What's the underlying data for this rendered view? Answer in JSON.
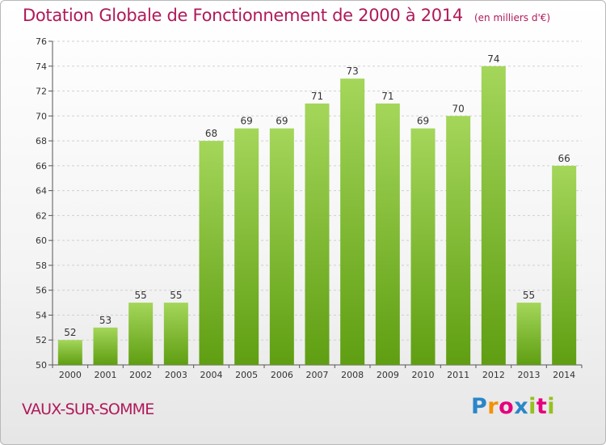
{
  "chart_data": {
    "type": "bar",
    "title": "Dotation Globale de Fonctionnement de 2000 à 2014",
    "subtitle": "(en milliers d'€)",
    "categories": [
      "2000",
      "2001",
      "2002",
      "2003",
      "2004",
      "2005",
      "2006",
      "2007",
      "2008",
      "2009",
      "2010",
      "2011",
      "2012",
      "2013",
      "2014"
    ],
    "values": [
      52,
      53,
      55,
      55,
      68,
      69,
      69,
      71,
      73,
      71,
      69,
      70,
      74,
      55,
      66
    ],
    "ylim": [
      50,
      76
    ],
    "yticks": [
      "50",
      "52",
      "54",
      "56",
      "58",
      "60",
      "62",
      "64",
      "66",
      "68",
      "70",
      "72",
      "74",
      "76"
    ],
    "xlabel": "",
    "ylabel": "",
    "grid": true,
    "legend": "none",
    "bar_color_top": "#a4d65a",
    "bar_color_bottom": "#5f9e12"
  },
  "commune": "VAUX-SUR-SOMME",
  "brand": {
    "letters": [
      "P",
      "r",
      "o",
      "x",
      "i",
      "t",
      "i"
    ],
    "colors": [
      "#2a86c8",
      "#f39200",
      "#e5007d",
      "#2a86c8",
      "#95c11f",
      "#e5007d",
      "#95c11f"
    ]
  }
}
